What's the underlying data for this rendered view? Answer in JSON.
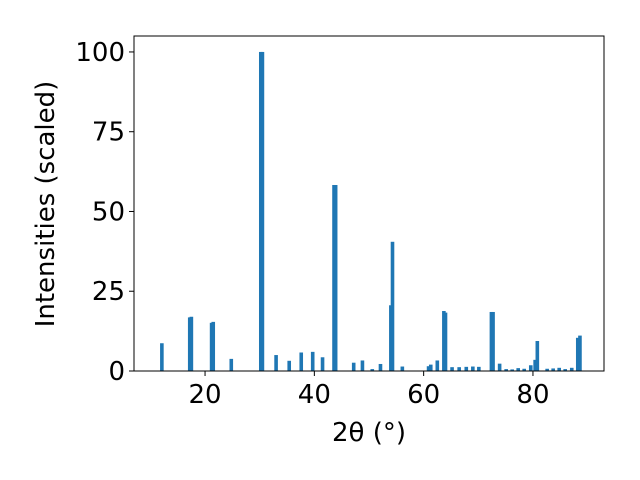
{
  "chart_data": {
    "type": "bar",
    "xlabel": "2θ (°)",
    "ylabel": "Intensities (scaled)",
    "xlim": [
      7,
      93
    ],
    "ylim": [
      0,
      105
    ],
    "x_ticks": [
      20,
      40,
      60,
      80
    ],
    "y_ticks": [
      0,
      25,
      50,
      75,
      100
    ],
    "bar_color": "#1f77b4",
    "grid": false,
    "series": [
      {
        "x": [
          12.1,
          17.2,
          17.5,
          21.2,
          21.5,
          24.8,
          30.2,
          30.5,
          33.0,
          35.4,
          37.6,
          39.7,
          41.5,
          43.6,
          43.9,
          47.2,
          48.8,
          50.6,
          52.1,
          54.0,
          54.3,
          56.1,
          60.9,
          61.3,
          62.5,
          63.7,
          64.0,
          65.2,
          66.5,
          67.8,
          69.0,
          70.1,
          72.4,
          72.7,
          73.9,
          75.1,
          76.2,
          77.3,
          78.4,
          79.6,
          80.4,
          80.8,
          82.6,
          83.7,
          84.8,
          85.9,
          87.1,
          88.2,
          88.6
        ],
        "y": [
          8.7,
          16.8,
          17.0,
          15.1,
          15.4,
          3.8,
          100.0,
          100.0,
          5.0,
          3.2,
          5.8,
          6.0,
          4.3,
          58.3,
          58.3,
          2.6,
          3.3,
          0.6,
          2.2,
          20.6,
          40.5,
          1.4,
          1.5,
          2.0,
          3.3,
          18.8,
          18.3,
          1.2,
          1.2,
          1.3,
          1.4,
          1.3,
          18.5,
          18.5,
          2.3,
          0.6,
          0.5,
          0.9,
          0.7,
          1.8,
          3.5,
          9.4,
          0.7,
          0.8,
          1.0,
          0.6,
          1.0,
          10.4,
          11.1
        ]
      }
    ]
  }
}
